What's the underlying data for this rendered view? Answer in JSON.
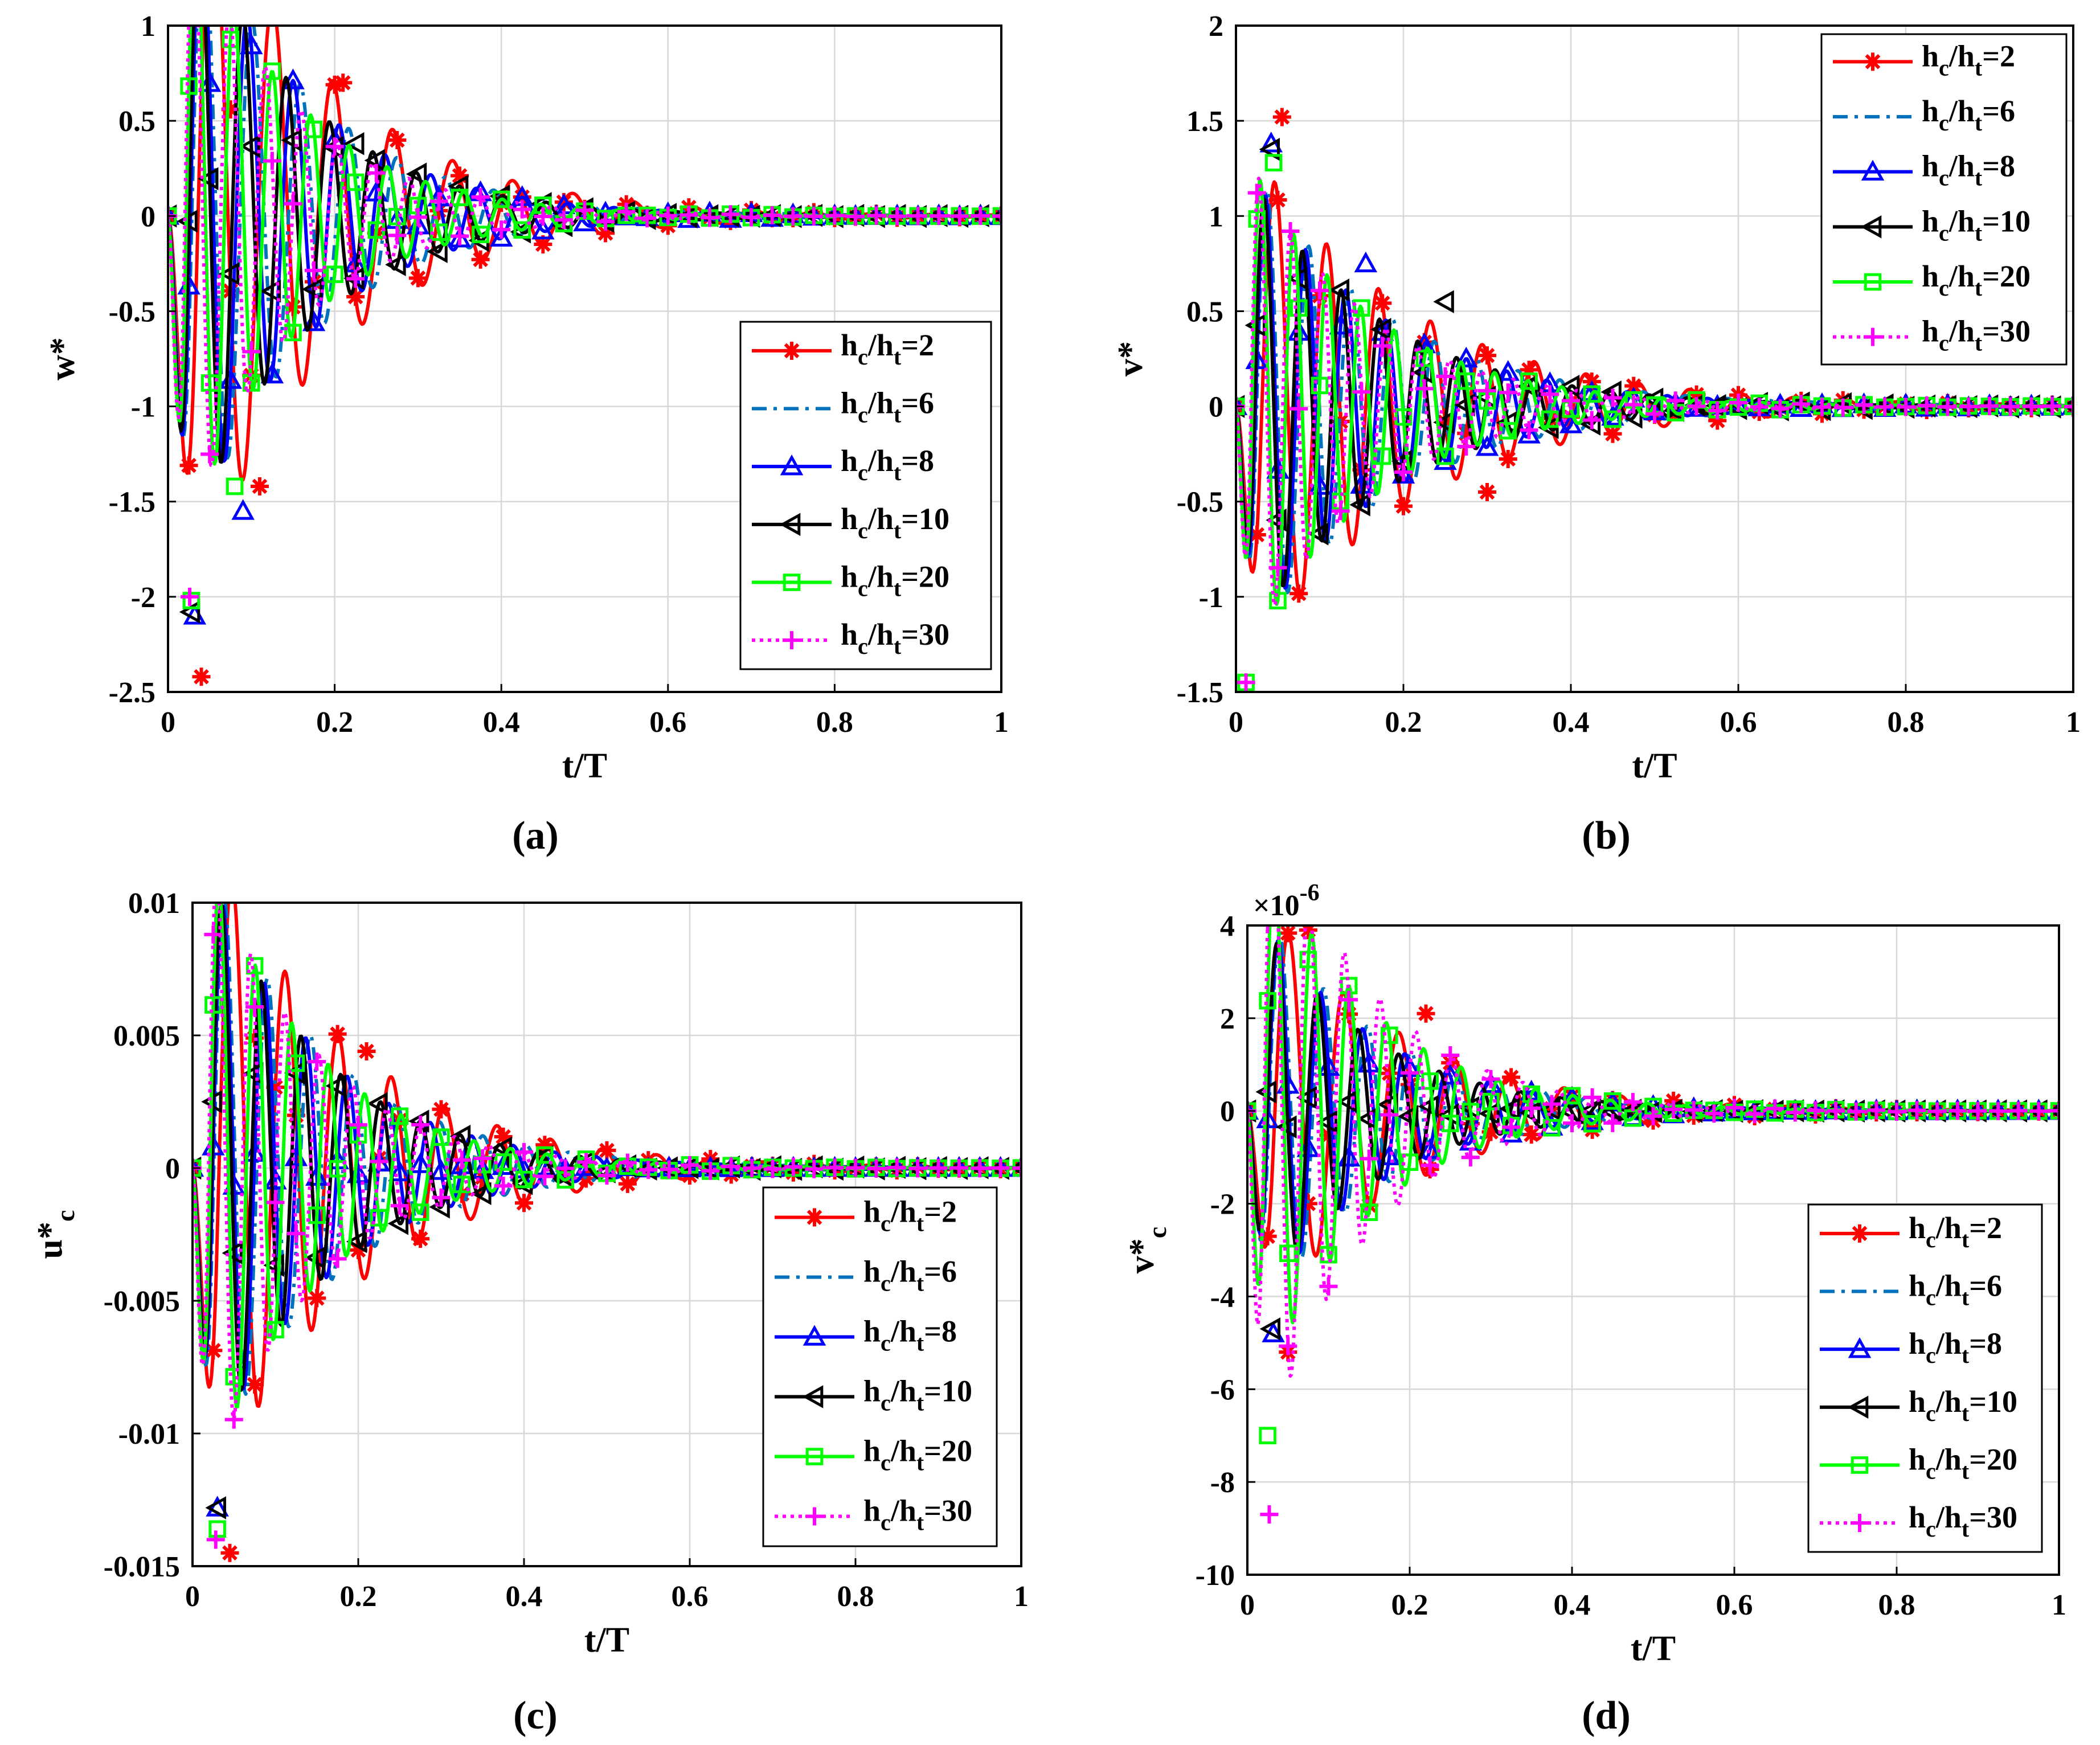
{
  "legend_entries": [
    {
      "key": "hc_ht_2",
      "base": "h",
      "sub1": "c",
      "sep": "/h",
      "sub2": "t",
      "value": "=2"
    },
    {
      "key": "hc_ht_6",
      "base": "h",
      "sub1": "c",
      "sep": "/h",
      "sub2": "t",
      "value": "=6"
    },
    {
      "key": "hc_ht_8",
      "base": "h",
      "sub1": "c",
      "sep": "/h",
      "sub2": "t",
      "value": "=8"
    },
    {
      "key": "hc_ht_10",
      "base": "h",
      "sub1": "c",
      "sep": "/h",
      "sub2": "t",
      "value": "=10"
    },
    {
      "key": "hc_ht_20",
      "base": "h",
      "sub1": "c",
      "sep": "/h",
      "sub2": "t",
      "value": "=20"
    },
    {
      "key": "hc_ht_30",
      "base": "h",
      "sub1": "c",
      "sep": "/h",
      "sub2": "t",
      "value": "=30"
    }
  ],
  "series_styles": [
    {
      "key": "hc_ht_2",
      "color": "#ff0000",
      "dash": "solid",
      "marker": "asterisk"
    },
    {
      "key": "hc_ht_6",
      "color": "#0072bd",
      "dash": "dashdot",
      "marker": "none"
    },
    {
      "key": "hc_ht_8",
      "color": "#0000ff",
      "dash": "solid",
      "marker": "triangle-up"
    },
    {
      "key": "hc_ht_10",
      "color": "#000000",
      "dash": "solid",
      "marker": "triangle-left"
    },
    {
      "key": "hc_ht_20",
      "color": "#00ff00",
      "dash": "solid",
      "marker": "square"
    },
    {
      "key": "hc_ht_30",
      "color": "#ff00ff",
      "dash": "dotted",
      "marker": "plus"
    }
  ],
  "chart_data": [
    {
      "id": "a",
      "caption": "(a)",
      "type": "line",
      "xlabel": "t/T",
      "ylabel": "w*",
      "ylabel_sub": "",
      "xlim": [
        0,
        1
      ],
      "ylim": [
        -2.5,
        1
      ],
      "xticks": [
        0,
        0.2,
        0.4,
        0.6,
        0.8,
        1
      ],
      "xtick_labels": [
        "0",
        "0.2",
        "0.4",
        "0.6",
        "0.8",
        "1"
      ],
      "yticks": [
        -2.5,
        -2,
        -1.5,
        -1,
        -0.5,
        0,
        0.5,
        1
      ],
      "ytick_labels": [
        "-2.5",
        "-2",
        "-1.5",
        "-1",
        "-0.5",
        "0",
        "0.5",
        "1"
      ],
      "exponent": "",
      "grid": true,
      "legend_location": "lower-right",
      "series": [
        {
          "key": "hc_ht_2",
          "amp": 2.42,
          "period": 0.072,
          "decay": 6.2,
          "phase": 0.0,
          "extrema": [
            {
              "t": 0.04,
              "v": -2.42
            },
            {
              "t": 0.075,
              "v": 0.56
            },
            {
              "t": 0.11,
              "v": -1.42
            },
            {
              "t": 0.21,
              "v": 0.7
            }
          ]
        },
        {
          "key": "hc_ht_6",
          "amp": 2.1,
          "period": 0.058,
          "decay": 7.0,
          "phase": 0.3,
          "extrema": [
            {
              "t": 0.03,
              "v": -2.1
            },
            {
              "t": 0.185,
              "v": 0.43
            }
          ]
        },
        {
          "key": "hc_ht_8",
          "amp": 2.1,
          "period": 0.055,
          "decay": 7.2,
          "phase": 0.5,
          "extrema": [
            {
              "t": 0.032,
              "v": -2.1
            },
            {
              "t": 0.09,
              "v": -1.55
            }
          ]
        },
        {
          "key": "hc_ht_10",
          "amp": 2.08,
          "period": 0.052,
          "decay": 7.4,
          "phase": 0.7,
          "extrema": [
            {
              "t": 0.028,
              "v": -2.08
            },
            {
              "t": 0.225,
              "v": 0.38
            }
          ]
        },
        {
          "key": "hc_ht_20",
          "amp": 2.02,
          "period": 0.046,
          "decay": 7.8,
          "phase": 1.0,
          "extrema": [
            {
              "t": 0.028,
              "v": -2.02
            },
            {
              "t": 0.08,
              "v": -1.42
            }
          ]
        },
        {
          "key": "hc_ht_30",
          "amp": 2.0,
          "period": 0.043,
          "decay": 8.0,
          "phase": 1.2,
          "extrema": [
            {
              "t": 0.026,
              "v": -2.0
            }
          ]
        }
      ]
    },
    {
      "id": "b",
      "caption": "(b)",
      "type": "line",
      "xlabel": "t/T",
      "ylabel": "v*",
      "ylabel_sub": "",
      "xlim": [
        0,
        1
      ],
      "ylim": [
        -1.5,
        2
      ],
      "xticks": [
        0,
        0.2,
        0.4,
        0.6,
        0.8,
        1
      ],
      "xtick_labels": [
        "0",
        "0.2",
        "0.4",
        "0.6",
        "0.8",
        "1"
      ],
      "yticks": [
        -1.5,
        -1,
        -0.5,
        0,
        0.5,
        1,
        1.5,
        2
      ],
      "ytick_labels": [
        "-1.5",
        "-1",
        "-0.5",
        "0",
        "0.5",
        "1",
        "1.5",
        "2"
      ],
      "exponent": "",
      "grid": true,
      "legend_location": "top-right",
      "series": [
        {
          "key": "hc_ht_2",
          "amp": 1.5,
          "period": 0.062,
          "decay": 5.2,
          "phase": 0.0,
          "extrema": [
            {
              "t": 0.055,
              "v": 1.52
            },
            {
              "t": 0.3,
              "v": -0.45
            }
          ]
        },
        {
          "key": "hc_ht_6",
          "amp": 1.42,
          "period": 0.05,
          "decay": 6.0,
          "phase": 0.3,
          "extrema": [
            {
              "t": 0.04,
              "v": 1.35
            }
          ]
        },
        {
          "key": "hc_ht_8",
          "amp": 1.38,
          "period": 0.048,
          "decay": 6.2,
          "phase": 0.5,
          "extrema": [
            {
              "t": 0.042,
              "v": 1.38
            },
            {
              "t": 0.155,
              "v": 0.75
            }
          ]
        },
        {
          "key": "hc_ht_10",
          "amp": 1.35,
          "period": 0.046,
          "decay": 6.3,
          "phase": 0.7,
          "extrema": [
            {
              "t": 0.042,
              "v": 1.35
            },
            {
              "t": 0.25,
              "v": 0.55
            }
          ]
        },
        {
          "key": "hc_ht_20",
          "amp": 1.45,
          "period": 0.04,
          "decay": 6.8,
          "phase": 1.0,
          "extrema": [
            {
              "t": 0.012,
              "v": -1.45
            },
            {
              "t": 0.045,
              "v": 1.28
            }
          ]
        },
        {
          "key": "hc_ht_30",
          "amp": 1.45,
          "period": 0.038,
          "decay": 7.0,
          "phase": 1.2,
          "extrema": [
            {
              "t": 0.012,
              "v": -1.45
            },
            {
              "t": 0.065,
              "v": 0.92
            }
          ]
        }
      ]
    },
    {
      "id": "c",
      "caption": "(c)",
      "type": "line",
      "xlabel": "t/T",
      "ylabel": "u*",
      "ylabel_sub": "c",
      "xlim": [
        0,
        1
      ],
      "ylim": [
        -0.015,
        0.01
      ],
      "xticks": [
        0,
        0.2,
        0.4,
        0.6,
        0.8,
        1
      ],
      "xtick_labels": [
        "0",
        "0.2",
        "0.4",
        "0.6",
        "0.8",
        "1"
      ],
      "yticks": [
        -0.015,
        -0.01,
        -0.005,
        0,
        0.005,
        0.01
      ],
      "ytick_labels": [
        "-0.015",
        "-0.01",
        "-0.005",
        "0",
        "0.005",
        "0.01"
      ],
      "exponent": "",
      "grid": true,
      "legend_location": "lower-right",
      "series": [
        {
          "key": "hc_ht_2",
          "amp": 0.0145,
          "period": 0.064,
          "decay": 6.0,
          "phase": 0.0,
          "extrema": [
            {
              "t": 0.045,
              "v": -0.0145
            },
            {
              "t": 0.075,
              "v": 0.0049
            },
            {
              "t": 0.21,
              "v": 0.0044
            }
          ]
        },
        {
          "key": "hc_ht_6",
          "amp": 0.0132,
          "period": 0.052,
          "decay": 6.8,
          "phase": 0.3,
          "extrema": [
            {
              "t": 0.033,
              "v": -0.0132
            }
          ]
        },
        {
          "key": "hc_ht_8",
          "amp": 0.0128,
          "period": 0.05,
          "decay": 7.0,
          "phase": 0.5,
          "extrema": [
            {
              "t": 0.03,
              "v": -0.0128
            }
          ]
        },
        {
          "key": "hc_ht_10",
          "amp": 0.0128,
          "period": 0.048,
          "decay": 7.2,
          "phase": 0.7,
          "extrema": [
            {
              "t": 0.03,
              "v": -0.0128
            }
          ]
        },
        {
          "key": "hc_ht_20",
          "amp": 0.0136,
          "period": 0.044,
          "decay": 7.6,
          "phase": 1.0,
          "extrema": [
            {
              "t": 0.03,
              "v": -0.0136
            }
          ]
        },
        {
          "key": "hc_ht_30",
          "amp": 0.014,
          "period": 0.041,
          "decay": 7.8,
          "phase": 1.2,
          "extrema": [
            {
              "t": 0.028,
              "v": -0.014
            }
          ]
        }
      ]
    },
    {
      "id": "d",
      "caption": "(d)",
      "type": "line",
      "xlabel": "t/T",
      "ylabel": "v*",
      "ylabel_sub": "c",
      "xlim": [
        0,
        1
      ],
      "ylim": [
        -10,
        4
      ],
      "xticks": [
        0,
        0.2,
        0.4,
        0.6,
        0.8,
        1
      ],
      "xtick_labels": [
        "0",
        "0.2",
        "0.4",
        "0.6",
        "0.8",
        "1"
      ],
      "yticks": [
        -10,
        -8,
        -6,
        -4,
        -2,
        0,
        2,
        4
      ],
      "ytick_labels": [
        "-10",
        "-8",
        "-6",
        "-4",
        "-2",
        "0",
        "2",
        "4"
      ],
      "exponent": "×10",
      "exponent_power": "-6",
      "grid": true,
      "legend_location": "lower-right",
      "series": [
        {
          "key": "hc_ht_2",
          "amp": 5.2,
          "period": 0.068,
          "decay": 6.0,
          "phase": 0.0,
          "extrema": [
            {
              "t": 0.05,
              "v": -5.2
            },
            {
              "t": 0.075,
              "v": 3.9
            },
            {
              "t": 0.22,
              "v": 2.1
            }
          ]
        },
        {
          "key": "hc_ht_6",
          "amp": 5.0,
          "period": 0.054,
          "decay": 6.8,
          "phase": 0.3,
          "extrema": [
            {
              "t": 0.034,
              "v": -5.0
            }
          ]
        },
        {
          "key": "hc_ht_8",
          "amp": 4.8,
          "period": 0.052,
          "decay": 7.0,
          "phase": 0.5,
          "extrema": [
            {
              "t": 0.032,
              "v": -4.8
            }
          ]
        },
        {
          "key": "hc_ht_10",
          "amp": 4.7,
          "period": 0.05,
          "decay": 7.2,
          "phase": 0.7,
          "extrema": [
            {
              "t": 0.03,
              "v": -4.7
            }
          ]
        },
        {
          "key": "hc_ht_20",
          "amp": 7.0,
          "period": 0.046,
          "decay": 7.6,
          "phase": 1.0,
          "extrema": [
            {
              "t": 0.025,
              "v": -7.0
            }
          ]
        },
        {
          "key": "hc_ht_30",
          "amp": 8.7,
          "period": 0.044,
          "decay": 7.8,
          "phase": 1.2,
          "extrema": [
            {
              "t": 0.027,
              "v": -8.7
            }
          ]
        }
      ]
    }
  ]
}
